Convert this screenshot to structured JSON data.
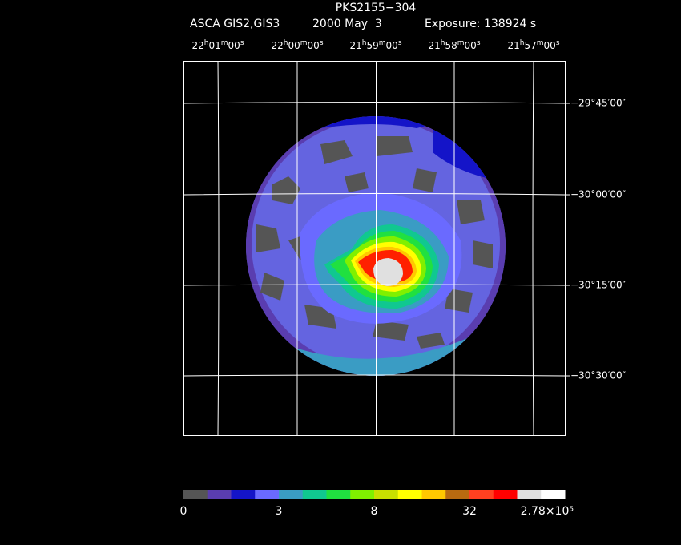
{
  "header": {
    "title": "PKS2155−304",
    "instrument": "ASCA GIS2,GIS3",
    "date": "2000 May  3",
    "exposure": "Exposure: 138924 s"
  },
  "ra_labels": [
    "22h01m00s",
    "22h00m00s",
    "21h59m00s",
    "21h58m00s",
    "21h57m00s"
  ],
  "dec_labels": [
    "−29°45′00″",
    "−30°00′00″",
    "−30°15′00″",
    "−30°30′00″"
  ],
  "colorbar": {
    "colors": [
      "#555555",
      "#5a3db0",
      "#1414c8",
      "#6a6aff",
      "#3a9cc4",
      "#10c890",
      "#20e040",
      "#80f000",
      "#c8e000",
      "#ffff00",
      "#ffc800",
      "#b86a10",
      "#ff4020",
      "#ff0000",
      "#e0e0e0",
      "#ffffff"
    ],
    "labels": [
      "0",
      "3",
      "8",
      "32",
      "2.78×10⁵"
    ]
  }
}
